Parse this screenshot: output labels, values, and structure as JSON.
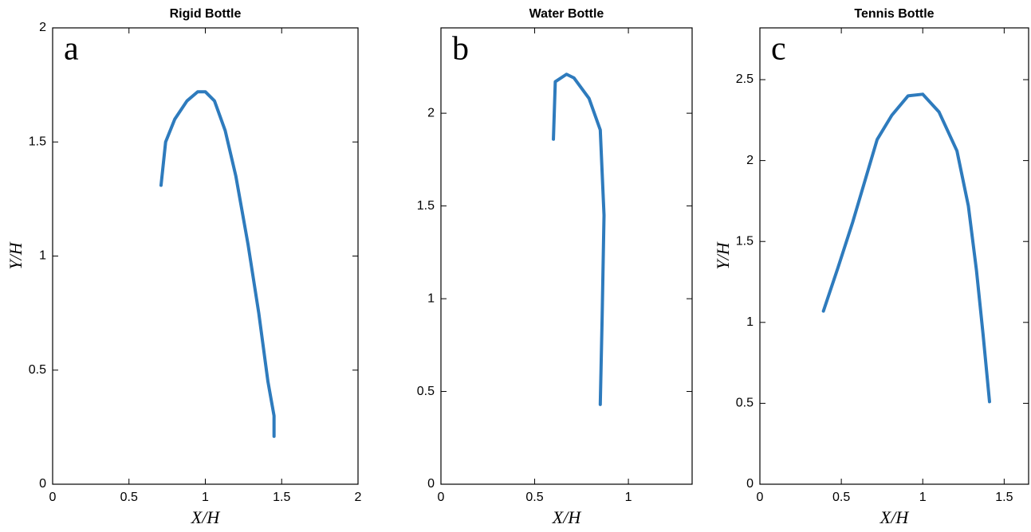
{
  "chart_data": [
    {
      "type": "line",
      "title": "Rigid Bottle",
      "panel_label": "a",
      "xlabel": "X/H",
      "ylabel": "Y/H",
      "color": "#2e7bbd",
      "x": [
        0.71,
        0.74,
        0.8,
        0.88,
        0.95,
        1.0,
        1.06,
        1.13,
        1.2,
        1.28,
        1.35,
        1.41,
        1.45,
        1.45
      ],
      "values": [
        1.31,
        1.5,
        1.6,
        1.68,
        1.72,
        1.72,
        1.68,
        1.55,
        1.35,
        1.05,
        0.75,
        0.45,
        0.3,
        0.21
      ],
      "xlim": [
        0,
        2
      ],
      "ylim": [
        0,
        2
      ],
      "xticks": [
        0,
        0.5,
        1,
        1.5,
        2
      ],
      "yticks": [
        0,
        0.5,
        1,
        1.5,
        2
      ]
    },
    {
      "type": "line",
      "title": "Water Bottle",
      "panel_label": "b",
      "xlabel": "X/H",
      "color": "#2e7bbd",
      "x": [
        0.6,
        0.61,
        0.67,
        0.71,
        0.79,
        0.85,
        0.87,
        0.86,
        0.85
      ],
      "values": [
        1.86,
        2.17,
        2.21,
        2.19,
        2.08,
        1.91,
        1.45,
        0.9,
        0.43
      ],
      "xlim": [
        0,
        1.34
      ],
      "ylim": [
        0,
        2.46
      ],
      "xticks": [
        0,
        0.5,
        1
      ],
      "yticks": [
        0,
        0.5,
        1,
        1.5,
        2
      ]
    },
    {
      "type": "line",
      "title": "Tennis Bottle",
      "panel_label": "c",
      "xlabel": "X/H",
      "ylabel": "Y/H",
      "color": "#2e7bbd",
      "x": [
        0.39,
        0.48,
        0.57,
        0.67,
        0.72,
        0.81,
        0.91,
        1.0,
        1.1,
        1.21,
        1.28,
        1.33,
        1.37,
        1.41
      ],
      "values": [
        1.07,
        1.34,
        1.62,
        1.96,
        2.13,
        2.28,
        2.4,
        2.41,
        2.3,
        2.06,
        1.72,
        1.32,
        0.93,
        0.51
      ],
      "xlim": [
        0,
        1.65
      ],
      "ylim": [
        0,
        2.82
      ],
      "xticks": [
        0,
        0.5,
        1,
        1.5
      ],
      "yticks": [
        0,
        0.5,
        1,
        1.5,
        2,
        2.5
      ]
    }
  ]
}
